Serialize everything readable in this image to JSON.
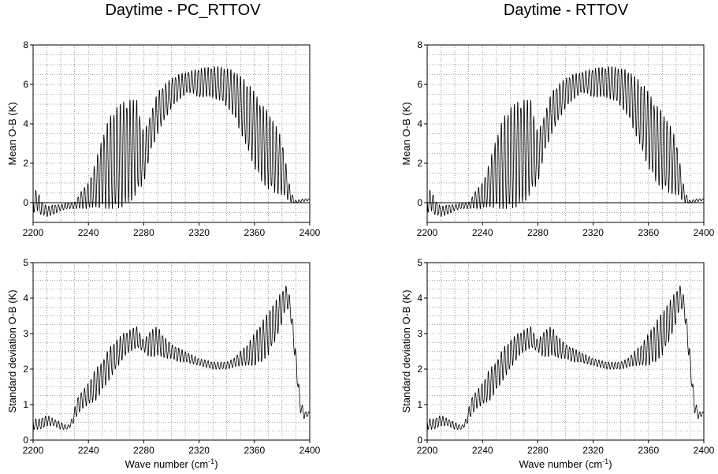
{
  "titles": [
    "Daytime - PC_RTTOV",
    "Daytime - RTTOV"
  ],
  "chart_data": [
    {
      "type": "line",
      "title": "Daytime - PC_RTTOV",
      "xlabel": "",
      "ylabel": "Mean  O-B (K)",
      "xlim": [
        2200,
        2400
      ],
      "ylim": [
        -1,
        8
      ],
      "xticks": [
        2200,
        2240,
        2280,
        2320,
        2360,
        2400
      ],
      "yticks": [
        0,
        2,
        4,
        6,
        8
      ],
      "grid": true,
      "zero_line": true,
      "series": [
        {
          "x": [
            2200,
            2203,
            2205,
            2210,
            2215,
            2220,
            2225,
            2230,
            2235,
            2240,
            2245,
            2250,
            2255,
            2260,
            2265,
            2270,
            2275,
            2280,
            2285,
            2290,
            2295,
            2300,
            2305,
            2310,
            2315,
            2320,
            2325,
            2330,
            2335,
            2340,
            2345,
            2350,
            2355,
            2360,
            2365,
            2370,
            2375,
            2380,
            2385,
            2388,
            2390,
            2395,
            2400
          ],
          "upper": [
            0.3,
            0.8,
            0.2,
            -0.2,
            -0.1,
            -0.1,
            0.0,
            0.0,
            0.6,
            1.0,
            2.0,
            3.3,
            4.3,
            4.8,
            5.1,
            5.2,
            5.2,
            3.5,
            4.5,
            5.6,
            6.0,
            6.3,
            6.5,
            6.6,
            6.7,
            6.8,
            6.85,
            6.9,
            6.9,
            6.8,
            6.7,
            6.4,
            6.1,
            5.6,
            5.0,
            4.6,
            4.0,
            3.2,
            1.0,
            0.3,
            0.1,
            0.2,
            0.2
          ],
          "lower": [
            -0.5,
            -0.4,
            -0.6,
            -0.7,
            -0.6,
            -0.4,
            -0.3,
            -0.3,
            -0.3,
            -0.3,
            -0.2,
            -0.3,
            -0.3,
            -0.3,
            -0.2,
            0.0,
            0.5,
            1.0,
            2.6,
            3.5,
            4.2,
            4.8,
            5.2,
            5.5,
            5.6,
            5.3,
            5.4,
            5.3,
            5.2,
            4.9,
            4.4,
            3.6,
            2.7,
            1.8,
            1.1,
            0.7,
            0.5,
            0.4,
            0.1,
            -0.05,
            0.0,
            0.05,
            0.1
          ]
        }
      ]
    },
    {
      "type": "line",
      "title": "Daytime - PC_RTTOV",
      "xlabel": "Wave number (cm",
      "xlabel_sup": "-1",
      "xlabel_end": ")",
      "ylabel": "Standard deviation  O-B (K)",
      "xlim": [
        2200,
        2400
      ],
      "ylim": [
        0,
        5
      ],
      "xticks": [
        2200,
        2240,
        2280,
        2320,
        2360,
        2400
      ],
      "yticks": [
        0,
        1,
        2,
        3,
        4,
        5
      ],
      "grid": true,
      "series": [
        {
          "x": [
            2200,
            2205,
            2210,
            2215,
            2220,
            2225,
            2228,
            2232,
            2236,
            2240,
            2245,
            2250,
            2255,
            2260,
            2265,
            2270,
            2275,
            2280,
            2285,
            2290,
            2295,
            2300,
            2305,
            2310,
            2320,
            2330,
            2340,
            2345,
            2350,
            2355,
            2360,
            2365,
            2370,
            2375,
            2380,
            2383,
            2386,
            2390,
            2393,
            2396,
            2400
          ],
          "upper": [
            0.6,
            0.6,
            0.7,
            0.6,
            0.5,
            0.4,
            0.6,
            1.2,
            1.4,
            1.6,
            2.0,
            2.2,
            2.6,
            2.8,
            3.0,
            3.1,
            3.2,
            2.8,
            3.1,
            3.2,
            2.9,
            2.7,
            2.6,
            2.5,
            2.3,
            2.2,
            2.2,
            2.3,
            2.5,
            2.7,
            3.0,
            3.3,
            3.6,
            3.9,
            4.2,
            4.35,
            4.0,
            2.5,
            1.2,
            0.8,
            0.8
          ],
          "lower": [
            0.3,
            0.3,
            0.4,
            0.4,
            0.3,
            0.3,
            0.4,
            0.7,
            0.9,
            1.0,
            1.1,
            1.4,
            1.7,
            2.0,
            2.3,
            2.5,
            2.6,
            2.5,
            2.3,
            2.4,
            2.3,
            2.3,
            2.2,
            2.2,
            2.1,
            2.0,
            2.0,
            2.05,
            2.1,
            2.1,
            2.1,
            2.2,
            2.4,
            2.8,
            3.3,
            3.8,
            3.5,
            2.0,
            0.8,
            0.6,
            0.7
          ]
        }
      ]
    },
    {
      "type": "line",
      "title": "Daytime - RTTOV",
      "xlabel": "",
      "ylabel": "Mean  O-B (K)",
      "xlim": [
        2200,
        2400
      ],
      "ylim": [
        -1,
        8
      ],
      "xticks": [
        2200,
        2240,
        2280,
        2320,
        2360,
        2400
      ],
      "yticks": [
        0,
        2,
        4,
        6,
        8
      ],
      "grid": true,
      "zero_line": true,
      "series": [
        {
          "x": [
            2200,
            2203,
            2205,
            2210,
            2215,
            2220,
            2225,
            2230,
            2235,
            2240,
            2245,
            2250,
            2255,
            2260,
            2265,
            2270,
            2275,
            2280,
            2285,
            2290,
            2295,
            2300,
            2305,
            2310,
            2315,
            2320,
            2325,
            2330,
            2335,
            2340,
            2345,
            2350,
            2355,
            2360,
            2365,
            2370,
            2375,
            2380,
            2385,
            2388,
            2390,
            2395,
            2400
          ],
          "upper": [
            0.3,
            0.8,
            0.2,
            -0.2,
            -0.1,
            -0.1,
            0.0,
            0.0,
            0.6,
            1.0,
            2.0,
            3.3,
            4.3,
            4.8,
            5.1,
            5.2,
            5.2,
            3.5,
            4.5,
            5.6,
            6.0,
            6.3,
            6.5,
            6.6,
            6.7,
            6.8,
            6.85,
            6.9,
            6.9,
            6.8,
            6.7,
            6.4,
            6.1,
            5.6,
            5.0,
            4.6,
            4.0,
            3.2,
            1.0,
            0.3,
            0.1,
            0.2,
            0.2
          ],
          "lower": [
            -0.5,
            -0.4,
            -0.6,
            -0.7,
            -0.6,
            -0.4,
            -0.3,
            -0.3,
            -0.3,
            -0.3,
            -0.2,
            -0.3,
            -0.3,
            -0.3,
            -0.2,
            0.0,
            0.5,
            1.0,
            2.6,
            3.5,
            4.2,
            4.8,
            5.2,
            5.5,
            5.6,
            5.3,
            5.4,
            5.3,
            5.2,
            4.9,
            4.4,
            3.6,
            2.7,
            1.8,
            1.1,
            0.7,
            0.5,
            0.4,
            0.1,
            -0.05,
            0.0,
            0.05,
            0.1
          ]
        }
      ]
    },
    {
      "type": "line",
      "title": "Daytime - RTTOV",
      "xlabel": "Wave number (cm",
      "xlabel_sup": "-1",
      "xlabel_end": ")",
      "ylabel": "Standard deviation  O-B (K)",
      "xlim": [
        2200,
        2400
      ],
      "ylim": [
        0,
        5
      ],
      "xticks": [
        2200,
        2240,
        2280,
        2320,
        2360,
        2400
      ],
      "yticks": [
        0,
        1,
        2,
        3,
        4,
        5
      ],
      "grid": true,
      "series": [
        {
          "x": [
            2200,
            2205,
            2210,
            2215,
            2220,
            2225,
            2228,
            2232,
            2236,
            2240,
            2245,
            2250,
            2255,
            2260,
            2265,
            2270,
            2275,
            2280,
            2285,
            2290,
            2295,
            2300,
            2305,
            2310,
            2320,
            2330,
            2340,
            2345,
            2350,
            2355,
            2360,
            2365,
            2370,
            2375,
            2380,
            2383,
            2386,
            2390,
            2393,
            2396,
            2400
          ],
          "upper": [
            0.6,
            0.6,
            0.7,
            0.6,
            0.5,
            0.4,
            0.6,
            1.2,
            1.4,
            1.6,
            2.0,
            2.2,
            2.6,
            2.8,
            3.0,
            3.1,
            3.2,
            2.8,
            3.1,
            3.2,
            2.9,
            2.7,
            2.6,
            2.5,
            2.3,
            2.2,
            2.2,
            2.3,
            2.5,
            2.7,
            3.0,
            3.3,
            3.6,
            3.9,
            4.2,
            4.35,
            4.0,
            2.5,
            1.2,
            0.8,
            0.8
          ],
          "lower": [
            0.3,
            0.3,
            0.4,
            0.4,
            0.3,
            0.3,
            0.4,
            0.7,
            0.9,
            1.0,
            1.1,
            1.4,
            1.7,
            2.0,
            2.3,
            2.5,
            2.6,
            2.5,
            2.3,
            2.4,
            2.3,
            2.3,
            2.2,
            2.2,
            2.1,
            2.0,
            2.0,
            2.05,
            2.1,
            2.1,
            2.1,
            2.2,
            2.4,
            2.8,
            3.3,
            3.8,
            3.5,
            2.0,
            0.8,
            0.6,
            0.7
          ]
        }
      ]
    }
  ]
}
